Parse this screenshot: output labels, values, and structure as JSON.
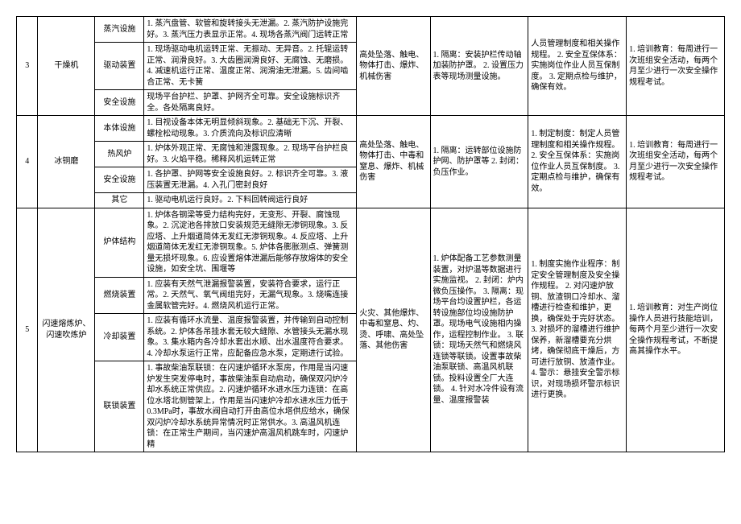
{
  "rows": [
    {
      "idx": "3",
      "equipment": "干燥机",
      "subrows": [
        {
          "sub": "蒸汽设施",
          "detail": "1. 蒸汽盘管、软管和旋转接头无泄漏。2. 蒸汽防护设施完好。3. 蒸汽压力表显示正常。4. 现场各蒸汽阀门运转正常"
        },
        {
          "sub": "驱动装置",
          "detail": "1. 现场驱动电机运转正常、无振动、无异音。2. 托辊运转正常、润滑良好。3. 大齿圈润滑良好、无腐蚀、无磨损。4. 减速机运行正常、温度正常、润滑油无泄漏。5. 齿间啮合正常、无卡簧"
        },
        {
          "sub": "安全设施",
          "detail": "现场平台护栏、护罩、护网齐全可靠。安全设施标识齐全。各处隔离良好。"
        }
      ],
      "hazard": "高处坠落、触电、物体打击、爆炸、机械伤害",
      "measure": "1. 隔离：安装护栏传动轴加装防护罩。\n2. 设置压力表等现场测量设施。",
      "system": "人员管理制度和相关操作规程。\n2. 安全互保体系：实施岗位作业人员互保制度。\n3. 定期点检与维护，确保有效。",
      "edu": "1. 培训教育：每周进行一次班组安全活动，每两个月至少进行一次安全操作规程考试。"
    },
    {
      "idx": "4",
      "equipment": "冰铜磨",
      "subrows": [
        {
          "sub": "本体设施",
          "detail": "1. 目视设备本体无明显倾斜现象。2. 基础无下沉、开裂、螺栓松动现象。3. 介质流向及标识应清晰"
        },
        {
          "sub": "热风炉",
          "detail": "1. 炉体外观正常、无腐蚀和泄露现象。2. 现场平台护栏良好。3. 火焰平稳。稀释风机运转正常"
        },
        {
          "sub": "安全设施",
          "detail": "1. 各护罩、护网等安全设施良好。2. 标识齐全可靠。3. 液压装置无泄漏。4. 入孔门密封良好"
        },
        {
          "sub": "其它",
          "detail": "1. 驱动电机运行良好。2. 下料回转阀运行良好"
        }
      ],
      "hazard": "高处坠落、触电、物体打击、中毒和窒息、爆炸、机械伤害",
      "measure": "1. 隔离：运转部位设施防护网、防护罩等\n2. 封闭：负压作业。",
      "system": "1. 制定制度：制定人员管理制度和相关操作规程。\n2. 安全互保体系：实施岗位作业人员互保制度。\n3. 定期点检与维护，确保有效。",
      "edu": "1. 培训教育：每周进行一次班组安全活动，每两个月至少进行一次安全操作规程考试。"
    },
    {
      "idx": "5",
      "equipment": "闪速熔炼炉、闪速吹炼炉",
      "subrows": [
        {
          "sub": "炉体结构",
          "detail": "1. 炉体各钢梁等受力结构完好，无变形、开裂、腐蚀现象。2. 沉淀池各排放口安装规范无缝隙无渗铜现象。3. 反应塔、上升烟道简体无发红无渗铜现象。4. 反应塔、上升烟道简体无发红无渗铜现象。5. 炉体各膨胀测点、弹簧测量无损坏现象。6. 应设置熔体泄漏后能够存放熔体的安全设施，如安全坑、围堰等"
        },
        {
          "sub": "燃烧装置",
          "detail": "1. 应装有天然气泄漏报警装置，安装符合要求，运行正常。2. 天然气、氧气阀组完好，无漏气现象。3. 烧嘴连接金属软管完好。4. 燃烧风机运行正常。"
        },
        {
          "sub": "冷却装置",
          "detail": "1. 应装有循环水流量、温度报警装置，并传输到自动控制系统。2. 炉体各吊挂水套无较大缝隙、水管接头无漏水现象。3. 集水箱内各冷却水套出水顺、出水温度符合要求。4. 冷却水泵运行正常，应配备应急水泵，定期进行试验。"
        },
        {
          "sub": "联锁装置",
          "detail": "1. 事故柴油泵联锁：在闪速炉循环水泵房，作用是当闪速炉发生突发停电时，事故柴油泵自动启动，确保双闪炉冷却水系统正常供应。2. 闪速炉循环水进水压力连锁：在高位水塔北侧管架上，作用是当闪速炉冷却水进水压力低于0.3MPa时，事故水阀自动打开由高位水塔供应给水，确保双闪炉冷却水系统异常情况时正常供水。3. 高温风机连锁：在正常生产期间，当闪速炉高温风机跳车时，闪速炉精"
        }
      ],
      "hazard": "火灾、其他爆炸、中毒和窒息、灼、烫、呼啸、高处坠落、其他伤害",
      "measure": "1. 炉体配备工艺参数测量装置，对炉温等数据进行实施监视。\n2. 封闭：炉内微负压操作。\n3. 隔离：现场平台均设置护栏，各运转设施部位均设施防护罩。现场电气设施相内操作，运程控制作业。\n3. 联锁：现场天然气和燃烧风连锁等联锁。设置事故柴油泵联锁、高温风机联锁。投料设置全厂大连锁。\n4. 针对水冷件设有流量、温度报警装",
      "system": "1. 制度实施作业程序：制定安全管理制度及安全操作规程。\n2. 对闪速炉放铜、放渣铜口冷却水、溜槽进行检查和维护，更换，确保处于完好状态。\n3. 对损坏的溜槽进行维护保养，新溜槽要充分烘烤，确保彻底干燥后，方可进行放铜、放渣作业。\n4. 警示：悬挂安全警示标识，对现场损坏警示标识进行更换。",
      "edu": "1. 培训教育：对生产岗位操作人员进行技能培训，每两个月至少进行一次安全操作规程考试，不断提高其操作水平。"
    }
  ]
}
